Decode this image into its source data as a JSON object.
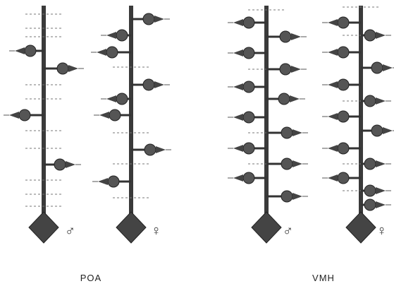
{
  "figure": {
    "panels": [
      {
        "label": "POA",
        "symbols": [
          "♂",
          "♀"
        ]
      },
      {
        "label": "VMH",
        "symbols": [
          "♂",
          "♀"
        ]
      }
    ]
  }
}
